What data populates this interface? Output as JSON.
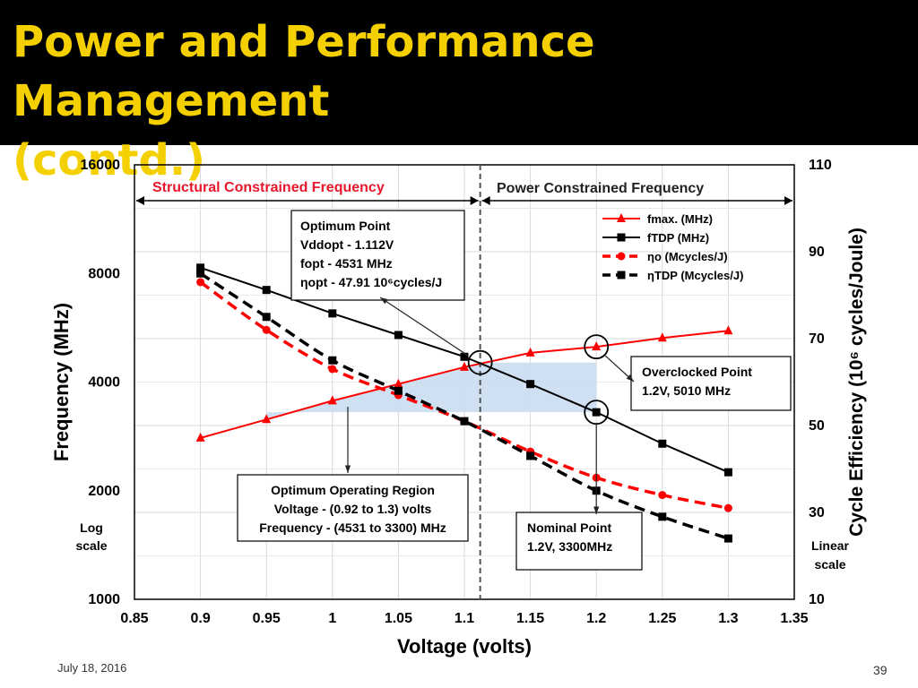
{
  "slide": {
    "title": "Power and Performance  Management\n(contd.)",
    "date": "July 18, 2016",
    "page": "39"
  },
  "colors": {
    "title_bg": "#000000",
    "title_text": "#F5D000",
    "red": "#FF0000",
    "black": "#000000",
    "region": "#C9DDEF"
  },
  "chart_data": {
    "type": "line",
    "xlabel": "Voltage (volts)",
    "ylabel_left": "Frequency (MHz)",
    "ylabel_right": "Cycle Efficiency (10⁶ cycles/Joule)",
    "left_scale_note": "Log scale",
    "right_scale_note": "Linear scale",
    "xlim": [
      0.85,
      1.35
    ],
    "x_ticks": [
      0.85,
      0.9,
      0.95,
      1,
      1.05,
      1.1,
      1.15,
      1.2,
      1.25,
      1.3,
      1.35
    ],
    "x_tick_labels": [
      "0.85",
      "0.9",
      "0.95",
      "1",
      "1.05",
      "1.1",
      "1.15",
      "1.2",
      "1.25",
      "1.3",
      "1.35"
    ],
    "ylim_left": [
      1000,
      16000
    ],
    "y_left_scale": "log2",
    "y_left_ticks": [
      1000,
      2000,
      4000,
      8000,
      16000
    ],
    "y_left_tick_labels": [
      "1000",
      "2000",
      "4000",
      "8000",
      "16000"
    ],
    "ylim_right": [
      10,
      110
    ],
    "y_right_ticks": [
      10,
      30,
      50,
      70,
      90,
      110
    ],
    "y_right_tick_labels": [
      "10",
      "30",
      "50",
      "70",
      "90",
      "110"
    ],
    "grid": true,
    "legend_position": "top-right",
    "divider_x": 1.112,
    "regions": {
      "left": "Structural Constrained Frequency",
      "right": "Power Constrained Frequency"
    },
    "series": [
      {
        "name": "fmax. (MHz)",
        "axis": "left",
        "color": "#FF0000",
        "dash": false,
        "marker": "triangle",
        "x": [
          0.9,
          0.95,
          1,
          1.05,
          1.1,
          1.15,
          1.2,
          1.25,
          1.3
        ],
        "values": [
          2800,
          3150,
          3550,
          3950,
          4400,
          4820,
          5010,
          5300,
          5550
        ]
      },
      {
        "name": "fTDP (MHz)",
        "axis": "left",
        "color": "#000000",
        "dash": false,
        "marker": "square",
        "x": [
          0.9,
          0.95,
          1,
          1.05,
          1.1,
          1.15,
          1.2,
          1.25,
          1.3
        ],
        "values": [
          8300,
          7200,
          6200,
          5400,
          4700,
          3950,
          3300,
          2700,
          2250
        ]
      },
      {
        "name": "ηo (Mcycles/J)",
        "axis": "right",
        "color": "#FF0000",
        "dash": true,
        "marker": "circle",
        "x": [
          0.9,
          0.95,
          1,
          1.05,
          1.1,
          1.15,
          1.2,
          1.25,
          1.3
        ],
        "values": [
          83,
          72,
          63,
          57,
          51,
          44,
          38,
          34,
          31
        ]
      },
      {
        "name": "ηTDP (Mcycles/J)",
        "axis": "right",
        "color": "#000000",
        "dash": true,
        "marker": "square",
        "x": [
          0.9,
          0.95,
          1,
          1.05,
          1.1,
          1.15,
          1.2,
          1.25,
          1.3
        ],
        "values": [
          85,
          75,
          65,
          58,
          51,
          43,
          35,
          29,
          24
        ]
      }
    ],
    "annotations": {
      "optimum_point": [
        "Optimum Point",
        "Vddopt - 1.112V",
        "fopt - 4531 MHz",
        "ηopt - 47.91 10⁶cycles/J"
      ],
      "optimum_region": [
        "Optimum Operating Region",
        "Voltage - (0.92 to 1.3) volts",
        "Frequency - (4531 to 3300) MHz"
      ],
      "overclocked_point": [
        "Overclocked Point",
        "1.2V, 5010 MHz"
      ],
      "nominal_point": [
        "Nominal Point",
        "1.2V, 3300MHz"
      ]
    }
  }
}
